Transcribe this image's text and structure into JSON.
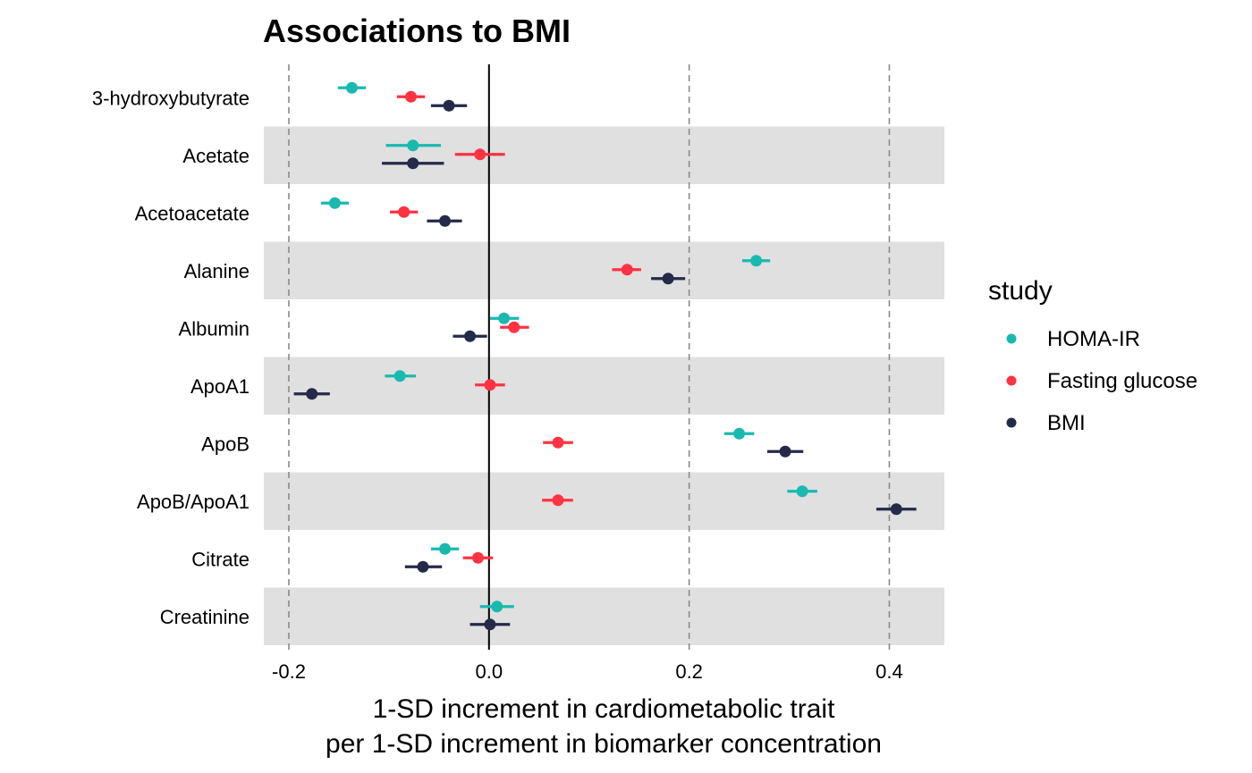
{
  "chart_data": {
    "type": "scatter",
    "subtype": "forest-plot",
    "title": "Associations to BMI",
    "xlabel_line1": "1-SD increment in cardiometabolic trait",
    "xlabel_line2": "per 1-SD increment in biomarker concentration",
    "ylabel": "",
    "xlim": [
      -0.225,
      0.455
    ],
    "x_ticks": [
      -0.2,
      0.0,
      0.2,
      0.4
    ],
    "x_tick_labels": [
      "-0.2",
      "0.0",
      "0.2",
      "0.4"
    ],
    "reference_line": 0.0,
    "dashed_gridlines": [
      -0.2,
      0.2,
      0.4
    ],
    "banded_rows": true,
    "band_color": "#e0e0e0",
    "categories": [
      "3-hydroxybutyrate",
      "Acetate",
      "Acetoacetate",
      "Alanine",
      "Albumin",
      "ApoA1",
      "ApoB",
      "ApoB/ApoA1",
      "Citrate",
      "Creatinine"
    ],
    "legend": {
      "title": "study",
      "position": "right"
    },
    "series": [
      {
        "name": "HOMA-IR",
        "color": "#1ab9b0",
        "values": [
          -0.137,
          -0.076,
          -0.154,
          0.267,
          0.015,
          -0.089,
          0.25,
          0.313,
          -0.044,
          0.008
        ],
        "ci_low": [
          -0.151,
          -0.103,
          -0.168,
          0.253,
          0.001,
          -0.104,
          0.235,
          0.298,
          -0.058,
          -0.009
        ],
        "ci_high": [
          -0.123,
          -0.048,
          -0.14,
          0.281,
          0.03,
          -0.073,
          0.265,
          0.328,
          -0.03,
          0.025
        ]
      },
      {
        "name": "Fasting glucose",
        "color": "#ff3342",
        "values": [
          -0.078,
          -0.009,
          -0.085,
          0.138,
          0.025,
          0.001,
          0.069,
          0.069,
          -0.011,
          null
        ],
        "ci_low": [
          -0.092,
          -0.034,
          -0.099,
          0.123,
          0.011,
          -0.014,
          0.054,
          0.053,
          -0.026,
          null
        ],
        "ci_high": [
          -0.064,
          0.016,
          -0.071,
          0.152,
          0.04,
          0.016,
          0.084,
          0.084,
          0.004,
          null
        ]
      },
      {
        "name": "BMI",
        "color": "#252a48",
        "values": [
          -0.04,
          -0.076,
          -0.044,
          0.179,
          -0.019,
          -0.177,
          0.296,
          0.407,
          -0.066,
          0.001
        ],
        "ci_low": [
          -0.058,
          -0.107,
          -0.062,
          0.162,
          -0.036,
          -0.195,
          0.278,
          0.387,
          -0.084,
          -0.019
        ],
        "ci_high": [
          -0.022,
          -0.045,
          -0.027,
          0.196,
          -0.002,
          -0.159,
          0.314,
          0.427,
          -0.047,
          0.021
        ]
      }
    ]
  }
}
